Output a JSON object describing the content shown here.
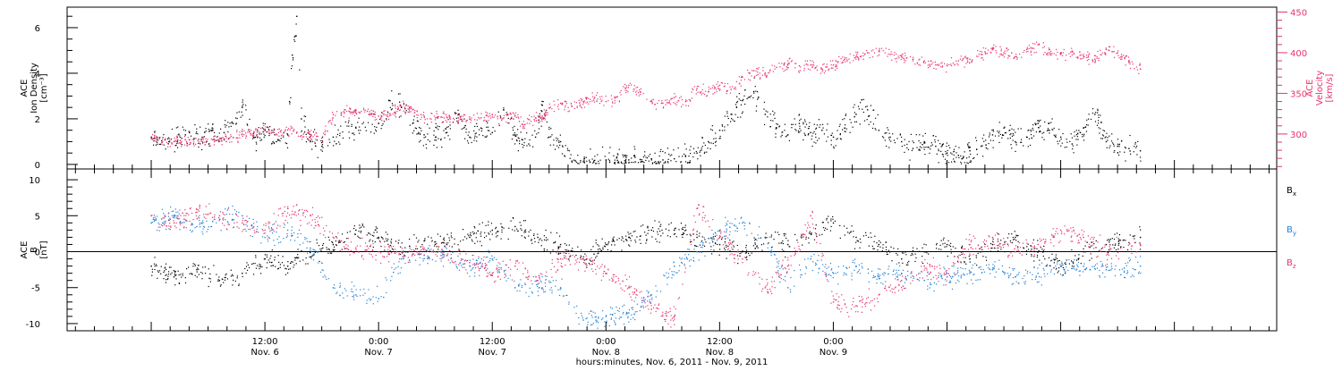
{
  "colors": {
    "black": "#000000",
    "pink": "#e8336a",
    "blue": "#1f7fd6"
  },
  "chart_data": [
    {
      "type": "scatter",
      "panel": "top",
      "left_axis_label": [
        "ACE",
        "Ion Density",
        "[cm⁻³]"
      ],
      "right_axis_label": [
        "ACE",
        "Velocity",
        "[km/s]"
      ],
      "left_ylim": [
        -0.2,
        6.9
      ],
      "left_ticks": [
        "0",
        "2",
        "4",
        "6"
      ],
      "right_ylim": [
        257,
        456
      ],
      "right_ticks": [
        "300",
        "350",
        "400",
        "450"
      ],
      "series": [
        {
          "color_key": "black",
          "axis": "left",
          "x": [
            0.0,
            0.08,
            0.15,
            0.22,
            0.27,
            0.32,
            0.36,
            0.4,
            0.45,
            0.5,
            0.55,
            0.6,
            0.62,
            0.64,
            0.66,
            0.7,
            0.75,
            0.8,
            0.9,
            1.0,
            1.05,
            1.1,
            1.15,
            1.2,
            1.25,
            1.3,
            1.35,
            1.4,
            1.45,
            1.5,
            1.55,
            1.6,
            1.63,
            1.66,
            1.69,
            1.72,
            1.75,
            1.8,
            1.85,
            1.9,
            1.95,
            2.0,
            2.05,
            2.1,
            2.15,
            2.2,
            2.25,
            2.3,
            2.35,
            2.4,
            2.45,
            2.5,
            2.55,
            2.6,
            2.65,
            2.7,
            2.75,
            2.8,
            2.85,
            2.9,
            2.95,
            3.0,
            3.05,
            3.1,
            3.15,
            3.2,
            3.25,
            3.3,
            3.35,
            3.4,
            3.45,
            3.5,
            3.55,
            3.6,
            3.65,
            3.7,
            3.75,
            3.8,
            3.85,
            3.9,
            3.95,
            4.0,
            4.05,
            4.1,
            4.15,
            4.2,
            4.25,
            4.3,
            4.35
          ],
          "y": [
            1.2,
            1.0,
            1.3,
            1.1,
            1.5,
            1.4,
            1.8,
            2.5,
            1.2,
            1.5,
            1.0,
            1.3,
            4.8,
            6.5,
            2.0,
            1.0,
            0.8,
            1.2,
            1.6,
            1.8,
            2.8,
            2.5,
            1.8,
            1.3,
            1.2,
            1.4,
            2.2,
            1.2,
            1.6,
            1.4,
            2.4,
            1.3,
            1.1,
            0.9,
            1.2,
            2.6,
            1.2,
            1.0,
            0.15,
            0.12,
            0.18,
            0.2,
            0.18,
            0.2,
            0.22,
            0.25,
            0.2,
            0.25,
            0.35,
            0.5,
            1.0,
            1.5,
            2.2,
            2.8,
            3.2,
            2.2,
            1.6,
            1.3,
            1.8,
            1.4,
            1.5,
            1.2,
            1.6,
            2.2,
            2.4,
            1.5,
            1.2,
            1.0,
            0.7,
            1.0,
            0.8,
            0.5,
            0.4,
            0.6,
            0.8,
            1.3,
            1.6,
            1.0,
            1.2,
            1.8,
            1.5,
            1.2,
            0.9,
            1.6,
            2.2,
            1.0,
            0.8,
            0.7,
            0.6
          ]
        },
        {
          "color_key": "pink",
          "axis": "right",
          "x": [
            0.0,
            0.08,
            0.15,
            0.22,
            0.27,
            0.32,
            0.36,
            0.4,
            0.45,
            0.5,
            0.55,
            0.6,
            0.64,
            0.66,
            0.7,
            0.75,
            0.8,
            0.85,
            0.9,
            0.95,
            1.0,
            1.05,
            1.1,
            1.15,
            1.2,
            1.25,
            1.3,
            1.35,
            1.4,
            1.45,
            1.5,
            1.55,
            1.6,
            1.63,
            1.66,
            1.69,
            1.72,
            1.75,
            1.8,
            1.85,
            1.9,
            1.95,
            2.0,
            2.05,
            2.1,
            2.15,
            2.2,
            2.25,
            2.3,
            2.35,
            2.4,
            2.45,
            2.5,
            2.55,
            2.6,
            2.65,
            2.7,
            2.75,
            2.8,
            2.85,
            2.9,
            2.95,
            3.0,
            3.05,
            3.1,
            3.15,
            3.2,
            3.25,
            3.3,
            3.35,
            3.4,
            3.45,
            3.5,
            3.55,
            3.6,
            3.65,
            3.7,
            3.75,
            3.8,
            3.85,
            3.9,
            3.95,
            4.0,
            4.05,
            4.1,
            4.15,
            4.2,
            4.25,
            4.3,
            4.35
          ],
          "y": [
            294,
            292,
            293,
            291,
            293,
            294,
            296,
            300,
            302,
            306,
            300,
            305,
            302,
            298,
            297,
            295,
            324,
            330,
            326,
            328,
            322,
            325,
            334,
            330,
            322,
            320,
            321,
            320,
            321,
            320,
            321,
            320,
            322,
            312,
            318,
            320,
            322,
            332,
            338,
            334,
            340,
            345,
            340,
            346,
            360,
            352,
            340,
            338,
            345,
            340,
            356,
            352,
            360,
            355,
            370,
            378,
            375,
            382,
            386,
            384,
            385,
            380,
            385,
            392,
            395,
            400,
            402,
            398,
            395,
            392,
            390,
            385,
            384,
            390,
            392,
            398,
            405,
            400,
            395,
            404,
            410,
            400,
            398,
            402,
            396,
            392,
            404,
            400,
            388,
            380
          ]
        }
      ]
    },
    {
      "type": "scatter",
      "panel": "bottom",
      "left_axis_label": [
        "ACE",
        "B",
        "[nT]"
      ],
      "ylim": [
        -11,
        11.5
      ],
      "ticks": [
        "10",
        "5",
        "0",
        "-5",
        "-10"
      ],
      "legend": [
        "Bx",
        "By",
        "Bz"
      ],
      "series": [
        {
          "name": "Bx",
          "color_key": "black",
          "x": [
            0.0,
            0.1,
            0.2,
            0.3,
            0.4,
            0.5,
            0.6,
            0.7,
            0.8,
            0.9,
            1.0,
            1.1,
            1.2,
            1.3,
            1.4,
            1.5,
            1.6,
            1.7,
            1.8,
            1.9,
            2.0,
            2.1,
            2.2,
            2.3,
            2.4,
            2.5,
            2.6,
            2.7,
            2.8,
            2.9,
            3.0,
            3.1,
            3.2,
            3.3,
            3.4,
            3.5,
            3.6,
            3.7,
            3.8,
            3.9,
            4.0,
            4.1,
            4.2,
            4.35
          ],
          "y": [
            -2,
            -3.5,
            -2.5,
            -4,
            -3,
            -1,
            -2,
            0,
            1,
            3,
            2,
            0,
            1.5,
            1,
            2,
            3,
            3.5,
            2,
            1,
            -1,
            1,
            2,
            3,
            3,
            2,
            1,
            0,
            2,
            1,
            2.5,
            4,
            2,
            1,
            -1,
            0,
            1,
            -1,
            1,
            2,
            0,
            -2,
            0,
            1,
            2
          ]
        },
        {
          "name": "By",
          "color_key": "blue",
          "x": [
            0.0,
            0.1,
            0.2,
            0.3,
            0.4,
            0.5,
            0.6,
            0.7,
            0.8,
            0.9,
            1.0,
            1.1,
            1.2,
            1.3,
            1.4,
            1.5,
            1.6,
            1.7,
            1.8,
            1.9,
            2.0,
            2.1,
            2.2,
            2.3,
            2.4,
            2.5,
            2.6,
            2.7,
            2.8,
            2.9,
            3.0,
            3.1,
            3.2,
            3.3,
            3.4,
            3.5,
            3.6,
            3.7,
            3.8,
            3.9,
            4.0,
            4.1,
            4.2,
            4.35
          ],
          "y": [
            4,
            5,
            3.5,
            4.5,
            5,
            2,
            3,
            0.5,
            -5,
            -6,
            -6.5,
            -1,
            -0.5,
            -0.5,
            -2,
            -1,
            -5,
            -4.5,
            -5,
            -9.5,
            -9,
            -8.5,
            -6,
            -2,
            0,
            3,
            4,
            2,
            -5,
            -1,
            -3,
            -2,
            -3.5,
            -3,
            -4,
            -3.5,
            -3,
            -2.5,
            -3.5,
            -3,
            -2,
            -2,
            -2.5,
            -2
          ]
        },
        {
          "name": "Bz",
          "color_key": "pink",
          "x": [
            0.0,
            0.1,
            0.2,
            0.3,
            0.4,
            0.5,
            0.6,
            0.7,
            0.8,
            0.9,
            1.0,
            1.1,
            1.2,
            1.3,
            1.4,
            1.5,
            1.6,
            1.7,
            1.8,
            1.9,
            2.0,
            2.1,
            2.2,
            2.3,
            2.4,
            2.5,
            2.6,
            2.7,
            2.8,
            2.9,
            3.0,
            3.1,
            3.2,
            3.3,
            3.4,
            3.5,
            3.6,
            3.7,
            3.8,
            3.9,
            4.0,
            4.1,
            4.2,
            4.35
          ],
          "y": [
            5,
            4,
            5.5,
            5,
            4,
            3,
            6,
            5,
            2,
            0.5,
            0,
            0,
            0.5,
            -0.5,
            -1.5,
            -3,
            -2,
            -4,
            -1,
            -1,
            -3,
            -5,
            -8,
            -9,
            6,
            2,
            -1,
            -5,
            -2,
            5,
            -7,
            -7.5,
            -6,
            -4,
            -2,
            -3,
            1,
            2,
            0,
            1,
            3,
            2,
            0,
            1
          ]
        }
      ]
    }
  ],
  "x_axis": {
    "start_day": "Nov. 6",
    "xlim": [
      -0.37,
      4.95
    ],
    "ticks": [
      {
        "x": 0.5,
        "time": "12:00",
        "day": "Nov. 6"
      },
      {
        "x": 1.0,
        "time": "0:00",
        "day": "Nov. 7"
      },
      {
        "x": 1.5,
        "time": "12:00",
        "day": "Nov. 7"
      },
      {
        "x": 2.0,
        "time": "0:00",
        "day": "Nov. 8"
      },
      {
        "x": 2.5,
        "time": "12:00",
        "day": "Nov. 8"
      },
      {
        "x": 3.0,
        "time": "0:00",
        "day": "Nov. 9"
      }
    ],
    "label": "hours:minutes, Nov.  6, 2011 - Nov.  9, 2011"
  }
}
